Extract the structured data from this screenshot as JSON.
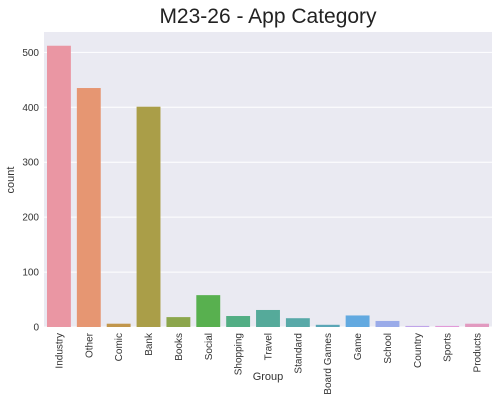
{
  "chart_data": {
    "type": "bar",
    "title": "M23-26 - App Category",
    "xlabel": "Group",
    "ylabel": "count",
    "categories": [
      "Industry",
      "Other",
      "Comic",
      "Bank",
      "Books",
      "Social",
      "Shopping",
      "Travel",
      "Standard",
      "Board Games",
      "Game",
      "School",
      "Country",
      "Sports",
      "Products"
    ],
    "values": [
      512,
      435,
      6,
      401,
      18,
      58,
      20,
      31,
      16,
      4,
      21,
      11,
      2,
      2,
      6
    ],
    "colors": [
      "#ea96a3",
      "#e69672",
      "#c1964c",
      "#aa9e48",
      "#8ca64c",
      "#58b04f",
      "#52ae84",
      "#55aa9a",
      "#58a9a8",
      "#5aa6b6",
      "#62a9e0",
      "#9aabe9",
      "#c0a4e9",
      "#e19ad9",
      "#e29ac0"
    ],
    "ylim": [
      0,
      537
    ],
    "yticks": [
      0,
      100,
      200,
      300,
      400,
      500
    ],
    "grid": true,
    "background": "#eaeaf2"
  }
}
